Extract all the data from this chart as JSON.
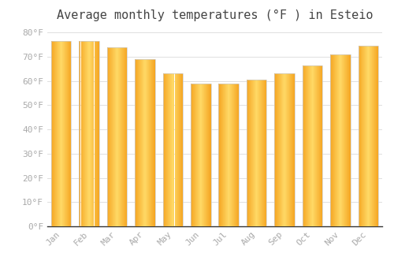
{
  "title": "Average monthly temperatures (°F ) in Esteio",
  "months": [
    "Jan",
    "Feb",
    "Mar",
    "Apr",
    "May",
    "Jun",
    "Jul",
    "Aug",
    "Sep",
    "Oct",
    "Nov",
    "Dec"
  ],
  "values": [
    76.5,
    76.5,
    74.0,
    69.0,
    63.0,
    59.0,
    59.0,
    60.5,
    63.0,
    66.5,
    71.0,
    74.5
  ],
  "bar_color_left": "#F5A623",
  "bar_color_center": "#FFD966",
  "bar_color_right": "#F5A623",
  "background_color": "#ffffff",
  "ylim": [
    0,
    82
  ],
  "yticks": [
    0,
    10,
    20,
    30,
    40,
    50,
    60,
    70,
    80
  ],
  "ytick_labels": [
    "0°F",
    "10°F",
    "20°F",
    "30°F",
    "40°F",
    "50°F",
    "60°F",
    "70°F",
    "80°F"
  ],
  "title_fontsize": 11,
  "tick_fontsize": 8,
  "grid_color": "#e0e0e0",
  "bar_edge_color": "#cccccc",
  "bar_width": 0.72
}
